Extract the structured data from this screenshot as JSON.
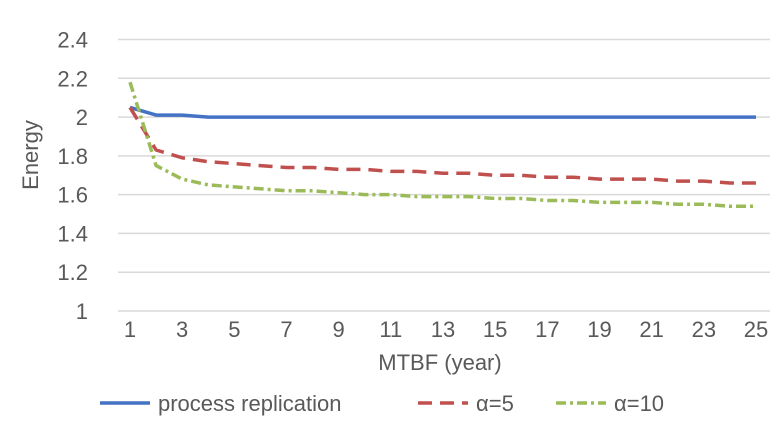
{
  "chart_data": {
    "type": "line",
    "xlabel": "MTBF (year)",
    "ylabel": "Energy",
    "ylim": [
      1,
      2.4
    ],
    "xlim": [
      1,
      25
    ],
    "y_ticks": [
      "1",
      "1.2",
      "1.4",
      "1.6",
      "1.8",
      "2",
      "2.2",
      "2.4"
    ],
    "x_ticks": [
      "1",
      "3",
      "5",
      "7",
      "9",
      "11",
      "13",
      "15",
      "17",
      "19",
      "21",
      "23",
      "25"
    ],
    "grid": "horizontal",
    "legend_position": "bottom",
    "x": [
      1,
      2,
      3,
      4,
      5,
      6,
      7,
      8,
      9,
      10,
      11,
      12,
      13,
      14,
      15,
      16,
      17,
      18,
      19,
      20,
      21,
      22,
      23,
      24,
      25
    ],
    "series": [
      {
        "name": "process replication",
        "color": "#4472c4",
        "dash": "solid",
        "values": [
          2.05,
          2.01,
          2.01,
          2.0,
          2.0,
          2.0,
          2.0,
          2.0,
          2.0,
          2.0,
          2.0,
          2.0,
          2.0,
          2.0,
          2.0,
          2.0,
          2.0,
          2.0,
          2.0,
          2.0,
          2.0,
          2.0,
          2.0,
          2.0,
          2.0
        ]
      },
      {
        "name": "α=5",
        "color": "#c0504d",
        "dash": "dash",
        "values": [
          2.05,
          1.83,
          1.79,
          1.77,
          1.76,
          1.75,
          1.74,
          1.74,
          1.73,
          1.73,
          1.72,
          1.72,
          1.71,
          1.71,
          1.7,
          1.7,
          1.69,
          1.69,
          1.68,
          1.68,
          1.68,
          1.67,
          1.67,
          1.66,
          1.66
        ]
      },
      {
        "name": "α=10",
        "color": "#9bbb59",
        "dash": "dot-dash",
        "values": [
          2.18,
          1.75,
          1.68,
          1.65,
          1.64,
          1.63,
          1.62,
          1.62,
          1.61,
          1.6,
          1.6,
          1.59,
          1.59,
          1.59,
          1.58,
          1.58,
          1.57,
          1.57,
          1.56,
          1.56,
          1.56,
          1.55,
          1.55,
          1.54,
          1.54
        ]
      }
    ]
  }
}
